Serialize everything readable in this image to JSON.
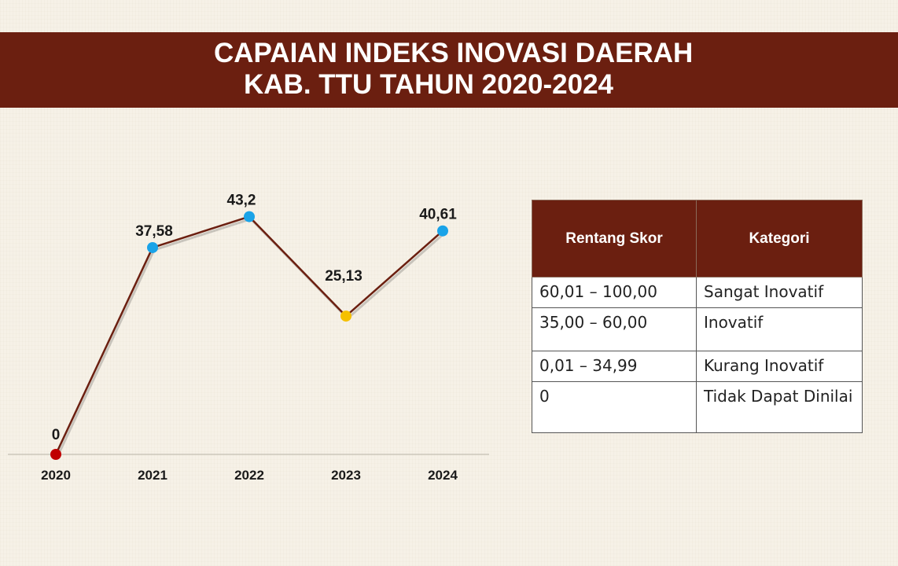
{
  "header": {
    "title_line1": "CAPAIAN INDEKS INOVASI DAERAH",
    "title_line2": "KAB. TTU TAHUN 2020-2024"
  },
  "chart_data": {
    "type": "line",
    "categories": [
      "2020",
      "2021",
      "2022",
      "2023",
      "2024"
    ],
    "values": [
      0,
      37.58,
      43.2,
      25.13,
      40.61
    ],
    "value_labels": [
      "0",
      "37,58",
      "43,2",
      "25,13",
      "40,61"
    ],
    "point_colors": [
      "#c00000",
      "#1aa3e8",
      "#1aa3e8",
      "#f5c000",
      "#1aa3e8"
    ],
    "line_color": "#6b1f10",
    "ylim": [
      0,
      55
    ],
    "grid": false,
    "legend": "none"
  },
  "legend_table": {
    "headers": [
      "Rentang Skor",
      "Kategori"
    ],
    "rows": [
      [
        "60,01 – 100,00",
        "Sangat Inovatif"
      ],
      [
        "35,00 – 60,00",
        "Inovatif"
      ],
      [
        "0,01 – 34,99",
        "Kurang Inovatif"
      ],
      [
        "0",
        "Tidak Dapat Dinilai"
      ]
    ]
  },
  "colors": {
    "banner": "#6b1f10",
    "background": "#f6f1e7"
  }
}
